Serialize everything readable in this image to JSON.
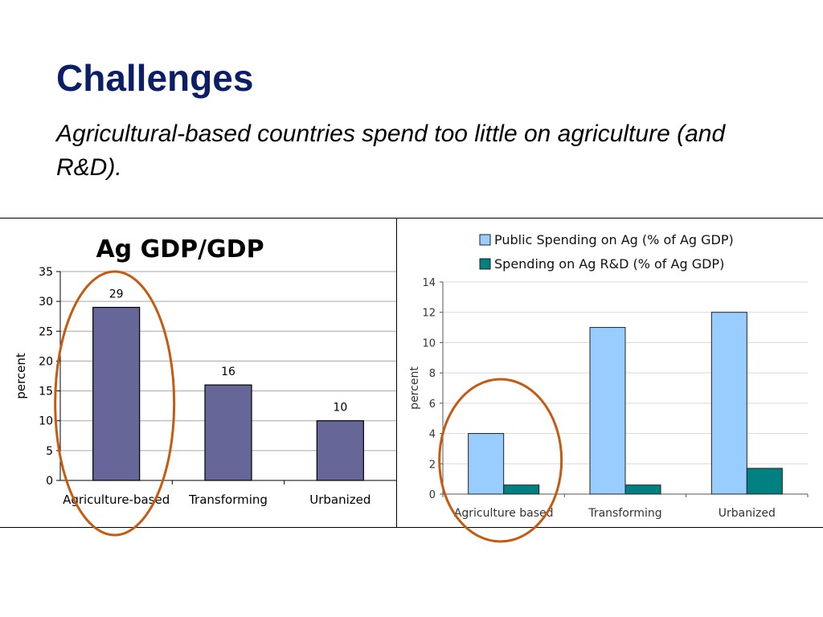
{
  "slide": {
    "title": "Challenges",
    "subtitle": "Agricultural-based countries spend too little on agriculture (and R&D)."
  },
  "colors": {
    "title": "#0c1f66",
    "bar_left": "#666699",
    "series_public": "#99ccff",
    "series_rd": "#008080",
    "highlight_ellipse": "#c55a11"
  },
  "chart_data": [
    {
      "type": "bar",
      "title": "Ag GDP/GDP",
      "xlabel": "",
      "ylabel": "percent",
      "categories": [
        "Agriculture-based",
        "Transforming",
        "Urbanized"
      ],
      "values": [
        29,
        16,
        10
      ],
      "data_labels": [
        "29",
        "16",
        "10"
      ],
      "ylim": [
        0,
        35
      ],
      "yticks": [
        0,
        5,
        10,
        15,
        20,
        25,
        30,
        35
      ],
      "grid": true,
      "legend": "none",
      "highlight": "Agriculture-based"
    },
    {
      "type": "bar",
      "title": "",
      "xlabel": "",
      "ylabel": "percent",
      "categories": [
        "Agriculture based",
        "Transforming",
        "Urbanized"
      ],
      "series": [
        {
          "name": "Public Spending on Ag (% of Ag GDP)",
          "values": [
            4,
            11,
            12
          ]
        },
        {
          "name": "Spending on Ag R&D (% of Ag GDP)",
          "values": [
            0.6,
            0.6,
            1.7
          ]
        }
      ],
      "ylim": [
        0,
        14
      ],
      "yticks": [
        0,
        2,
        4,
        6,
        8,
        10,
        12,
        14
      ],
      "grid": true,
      "legend": "top",
      "highlight": "Agriculture based"
    }
  ]
}
